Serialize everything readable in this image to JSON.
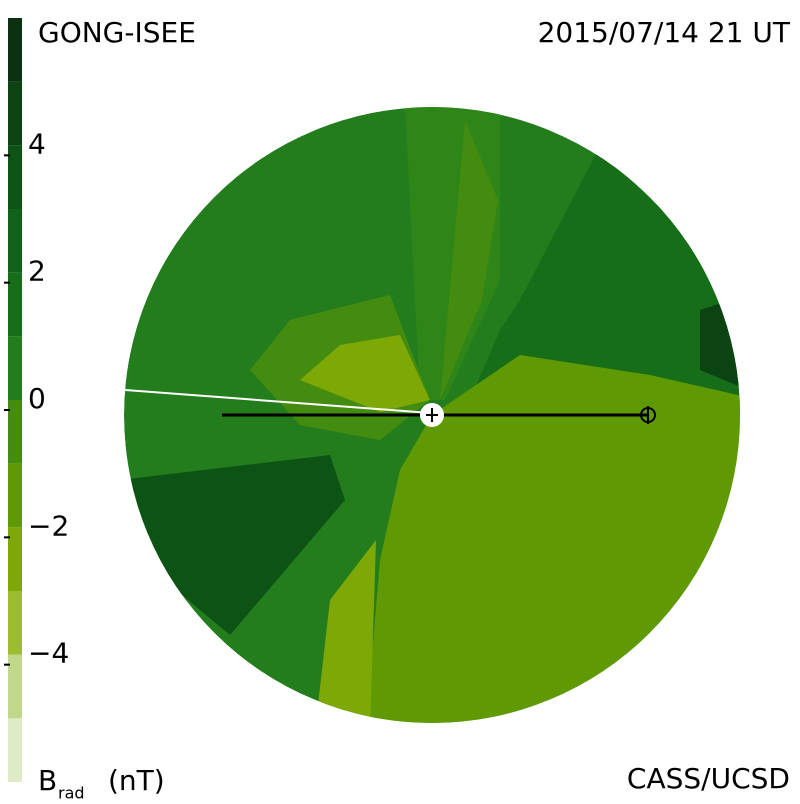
{
  "chart_data": {
    "type": "contour",
    "title": "GONG-ISEE",
    "subtitle": "2015/07/14 21 UT",
    "credit": "CASS/UCSD",
    "colorbar": {
      "label": "B",
      "label_sub": "rad",
      "unit": "(nT)",
      "ylim": [
        -6,
        6
      ],
      "yticks": [
        4,
        2,
        0,
        {
          "value": -2,
          "label": "−2"
        },
        {
          "value": -4,
          "label": "−4"
        }
      ],
      "bins": [
        -6,
        -5,
        -4,
        -3,
        -2,
        -1,
        0,
        1,
        2,
        3,
        4,
        5,
        6
      ],
      "colors": [
        "#dfeac6",
        "#c0d88a",
        "#9cbe2e",
        "#7ea806",
        "#5f9a04",
        "#438c10",
        "#237d1c",
        "#166f18",
        "#10611a",
        "#0e5316",
        "#0c4312",
        "#0a3210"
      ]
    }
  }
}
